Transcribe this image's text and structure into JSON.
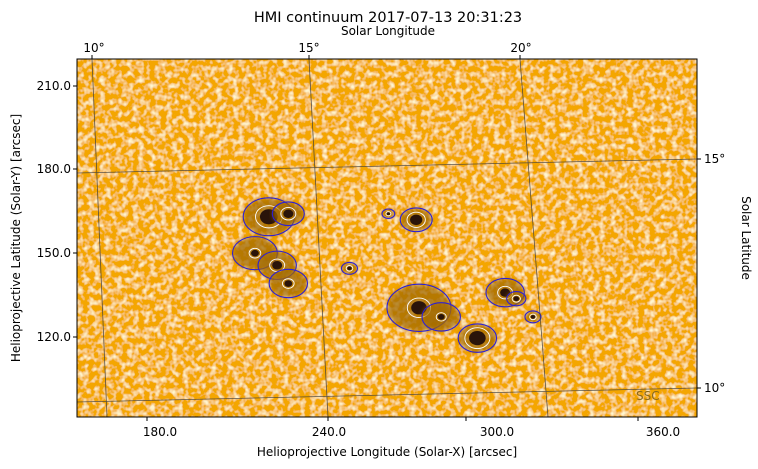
{
  "chart_data": {
    "type": "heatmap",
    "title": "HMI continuum 2017-07-13 20:31:23",
    "xlabel": "Helioprojective Longitude (Solar-X) [arcsec]",
    "ylabel": "Helioprojective Latitude (Solar-Y) [arcsec]",
    "top_xlabel": "Solar Longitude",
    "right_ylabel": "Solar Latitude",
    "xlim": [
      150,
      373
    ],
    "ylim": [
      101,
      219
    ],
    "x_ticks": [
      180,
      240,
      300,
      360
    ],
    "x_tick_labels": [
      "180.0",
      "240.0",
      "300.0",
      "360.0"
    ],
    "y_ticks": [
      120,
      150,
      180,
      210
    ],
    "y_tick_labels": [
      "120.0",
      "150.0",
      "180.0",
      "210.0"
    ],
    "top_ticks": [
      "10°",
      "15°",
      "20°"
    ],
    "right_ticks": [
      "15°",
      "10°"
    ],
    "grid_overlay": "heliographic",
    "annotation": "SSC",
    "colors": {
      "background": "#f4a600",
      "grain_light": "#ffe7a6",
      "umbra": "#2a140a",
      "penumbra": "#a26a00",
      "contour_outer": "#2b1fd6",
      "contour_inner": "#ffffff",
      "grid": "#404040"
    },
    "sunspots": [
      {
        "x": 219,
        "y": 167,
        "r": 3.2,
        "pen": 8
      },
      {
        "x": 226,
        "y": 168,
        "r": 1.8,
        "pen": 5
      },
      {
        "x": 214,
        "y": 155,
        "r": 1.4,
        "pen": 7
      },
      {
        "x": 222,
        "y": 151,
        "r": 1.8,
        "pen": 6
      },
      {
        "x": 226,
        "y": 145,
        "r": 1.4,
        "pen": 6
      },
      {
        "x": 273,
        "y": 137,
        "r": 2.8,
        "pen": 10
      },
      {
        "x": 281,
        "y": 134,
        "r": 1.2,
        "pen": 6
      },
      {
        "x": 294,
        "y": 127,
        "r": 3.0,
        "pen": 6
      },
      {
        "x": 272,
        "y": 166,
        "r": 2.2,
        "pen": 5
      },
      {
        "x": 304,
        "y": 142,
        "r": 1.8,
        "pen": 6
      },
      {
        "x": 248,
        "y": 150,
        "r": 0.8,
        "pen": 2.5
      },
      {
        "x": 262,
        "y": 168,
        "r": 0.6,
        "pen": 2
      },
      {
        "x": 308,
        "y": 140,
        "r": 1.0,
        "pen": 3
      },
      {
        "x": 314,
        "y": 134,
        "r": 0.8,
        "pen": 2.5
      }
    ]
  }
}
